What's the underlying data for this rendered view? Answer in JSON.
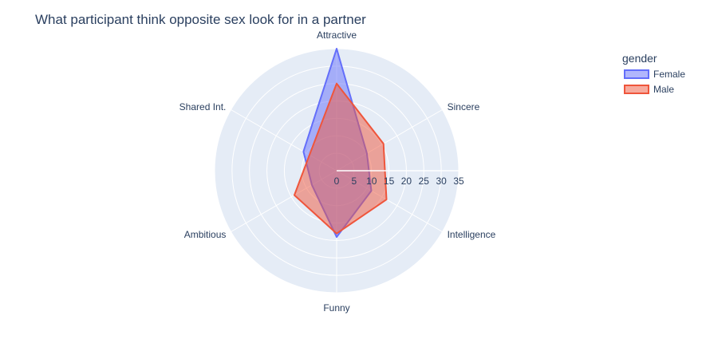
{
  "chart_data": {
    "type": "radar",
    "title": "What participant think opposite sex look for in a partner",
    "categories": [
      "Attractive",
      "Sincere",
      "Intelligence",
      "Funny",
      "Ambitious",
      "Shared Int."
    ],
    "radial_range": [
      0,
      35
    ],
    "radial_ticks": [
      "0",
      "5",
      "10",
      "15",
      "20",
      "25",
      "30",
      "35"
    ],
    "legend_title": "gender",
    "legend_position": "top-right",
    "grid": true,
    "series": [
      {
        "name": "Female",
        "values": [
          35,
          10,
          11.5,
          19,
          8.2,
          11
        ],
        "color": "#636efa"
      },
      {
        "name": "Male",
        "values": [
          25,
          15.5,
          16.5,
          18,
          14,
          9
        ],
        "color": "#ef553b"
      }
    ]
  }
}
